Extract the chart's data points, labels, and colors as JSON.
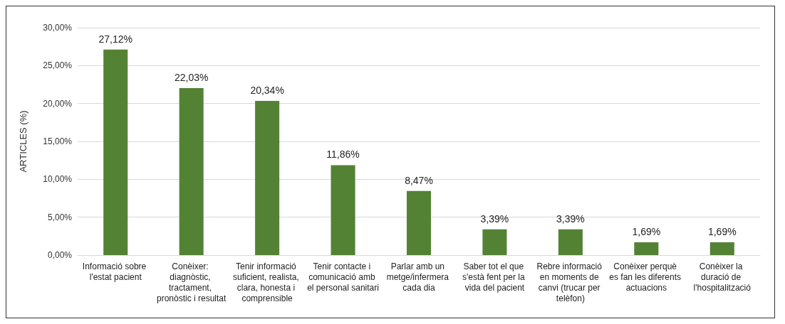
{
  "chart_data": {
    "type": "bar",
    "ylabel": "ARTICLES (%)",
    "categories": [
      "Informació sobre l'estat pacient",
      "Conèixer: diagnòstic, tractament, pronòstic i resultat",
      "Tenir informació suficient, realista, clara, honesta i comprensible",
      "Tenir contacte i comunicació amb el personal sanitari",
      "Parlar amb un metge/infermera cada dia",
      "Saber tot el que s'està fent per la vida del pacient",
      "Rebre informació en moments de canvi (trucar per telèfon)",
      "Conèixer perquè es fan les diferents actuacions",
      "Conèixer la duració de l'hospitalització"
    ],
    "values": [
      27.12,
      22.03,
      20.34,
      11.86,
      8.47,
      3.39,
      3.39,
      1.69,
      1.69
    ],
    "value_labels": [
      "27,12%",
      "22,03%",
      "20,34%",
      "11,86%",
      "8,47%",
      "3,39%",
      "3,39%",
      "1,69%",
      "1,69%"
    ],
    "color": "#548235",
    "ylim": [
      0,
      30
    ],
    "yticks": [
      {
        "value": 0,
        "label": "0,00%"
      },
      {
        "value": 5,
        "label": "5,00%"
      },
      {
        "value": 10,
        "label": "10,00%"
      },
      {
        "value": 15,
        "label": "15,00%"
      },
      {
        "value": 20,
        "label": "20,00%"
      },
      {
        "value": 25,
        "label": "25,00%"
      },
      {
        "value": 30,
        "label": "30,00%"
      }
    ],
    "grid": "y"
  }
}
